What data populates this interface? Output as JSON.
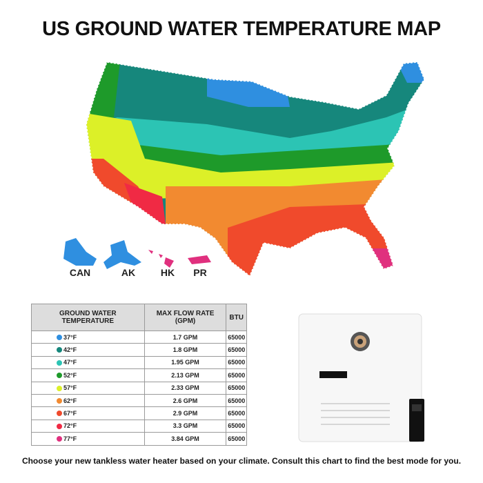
{
  "title": "US GROUND WATER TEMPERATURE MAP",
  "map_labels": [
    "CAN",
    "AK",
    "HK",
    "PR"
  ],
  "table": {
    "header": [
      "GROUND WATER TEMPERATURE",
      "MAX FLOW RATE (GPM)",
      "BTU"
    ],
    "rows": [
      {
        "temp": "37°F",
        "color": "#2f8fe0",
        "flow": "1.7 GPM",
        "btu": "65000"
      },
      {
        "temp": "42°F",
        "color": "#16877c",
        "flow": "1.8 GPM",
        "btu": "65000"
      },
      {
        "temp": "47°F",
        "color": "#2cc4b4",
        "flow": "1.95 GPM",
        "btu": "65000"
      },
      {
        "temp": "52°F",
        "color": "#1e9a2a",
        "flow": "2.13 GPM",
        "btu": "65000"
      },
      {
        "temp": "57°F",
        "color": "#dcf028",
        "flow": "2.33 GPM",
        "btu": "65000"
      },
      {
        "temp": "62°F",
        "color": "#f28a30",
        "flow": "2.6 GPM",
        "btu": "65000"
      },
      {
        "temp": "67°F",
        "color": "#f04a2c",
        "flow": "2.9 GPM",
        "btu": "65000"
      },
      {
        "temp": "72°F",
        "color": "#f02a44",
        "flow": "3.3 GPM",
        "btu": "65000"
      },
      {
        "temp": "77°F",
        "color": "#e0307e",
        "flow": "3.84 GPM",
        "btu": "65000"
      }
    ]
  },
  "footer": "Choose your new tankless water heater based on your climate. Consult this chart to find the best mode for you."
}
